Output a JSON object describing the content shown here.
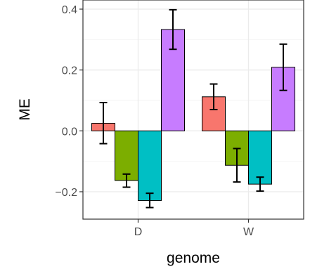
{
  "chart_data": {
    "type": "bar",
    "title": "",
    "xlabel": "genome",
    "ylabel": "ME",
    "categories": [
      "D",
      "W"
    ],
    "ylim": [
      -0.29,
      0.43
    ],
    "yticks": [
      -0.2,
      0.0,
      0.2,
      0.4
    ],
    "ytick_labels": [
      "−0.2",
      "0.0",
      "0.2",
      "0.4"
    ],
    "grid": true,
    "legend": "none",
    "series": [
      {
        "color": "#F8766D",
        "values": [
          0.025,
          0.112
        ],
        "err_low": [
          -0.042,
          0.07
        ],
        "err_high": [
          0.093,
          0.154
        ]
      },
      {
        "color": "#7CAE00",
        "values": [
          -0.163,
          -0.113
        ],
        "err_low": [
          -0.185,
          -0.168
        ],
        "err_high": [
          -0.142,
          -0.058
        ]
      },
      {
        "color": "#00BFC4",
        "values": [
          -0.229,
          -0.175
        ],
        "err_low": [
          -0.252,
          -0.198
        ],
        "err_high": [
          -0.205,
          -0.152
        ]
      },
      {
        "color": "#C77CFF",
        "values": [
          0.333,
          0.209
        ],
        "err_low": [
          0.268,
          0.133
        ],
        "err_high": [
          0.398,
          0.285
        ]
      }
    ]
  }
}
